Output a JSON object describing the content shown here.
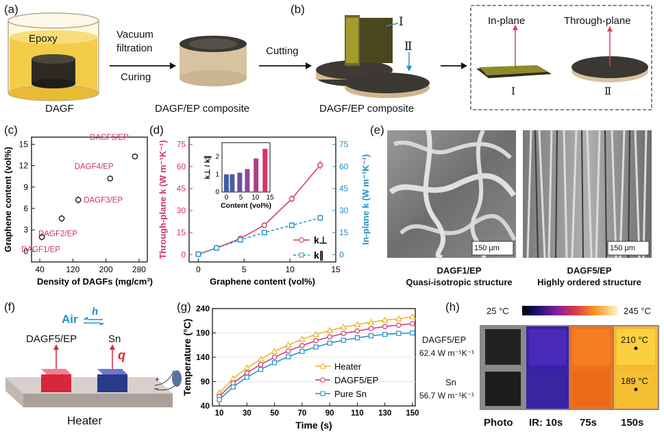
{
  "panel_labels": {
    "a": "(a)",
    "b": "(b)",
    "c": "(c)",
    "d": "(d)",
    "e": "(e)",
    "f": "(f)",
    "g": "(g)",
    "h": "(h)"
  },
  "panel_a": {
    "epoxy_label": "Epoxy",
    "dagf_label": "DAGF",
    "step1_top": "Vacuum",
    "step1_mid": "filtration",
    "step1_bottom": "Curing",
    "composite_label": "DAGF/EP composite"
  },
  "panel_b": {
    "step_label": "Cutting",
    "composite_label": "DAGF/EP composite",
    "marker_I": "Ⅰ",
    "marker_II": "Ⅱ",
    "inplane_label": "In-plane",
    "throughplane_label": "Through-plane",
    "roman_I": "Ⅰ",
    "roman_II": "Ⅱ"
  },
  "panel_c": {
    "colors": {
      "label": "#c8326e",
      "marker": "#222222"
    },
    "chart_data": {
      "type": "scatter",
      "xlabel": "Density of DAGFs (mg/cm³)",
      "ylabel": "Graphene content (vol%)",
      "xlim": [
        20,
        300
      ],
      "ylim": [
        -1.5,
        16
      ],
      "xticks": [
        "40",
        "120",
        "200",
        "280"
      ],
      "yticks": [
        "0",
        "3",
        "6",
        "9",
        "12",
        "15"
      ],
      "points": [
        {
          "label": "DAGF1/EP",
          "x": 45,
          "y": 2.0,
          "err": 0.5
        },
        {
          "label": "DAGF2/EP",
          "x": 93,
          "y": 4.6,
          "err": 0.5
        },
        {
          "label": "DAGF3/EP",
          "x": 133,
          "y": 7.2,
          "err": 0.5
        },
        {
          "label": "DAGF4/EP",
          "x": 210,
          "y": 10.2,
          "err": 0.4
        },
        {
          "label": "DAGF5/EP",
          "x": 270,
          "y": 13.3,
          "err": 0.4
        }
      ]
    }
  },
  "panel_d": {
    "colors": {
      "perp": "#d6336c",
      "par": "#1e90c8"
    },
    "chart_data": {
      "type": "line",
      "xlabel": "Graphene content (vol%)",
      "ylabel_left": "Through-plane k (W m⁻¹K⁻¹)",
      "ylabel_right": "In-plane k (W m⁻¹K⁻¹)",
      "xlim": [
        -1,
        15
      ],
      "ylim": [
        -5,
        80
      ],
      "xticks": [
        "0",
        "5",
        "10",
        "15"
      ],
      "yticks": [
        "0",
        "15",
        "30",
        "45",
        "60",
        "75"
      ],
      "series": [
        {
          "name": "k⊥",
          "x": [
            0,
            2,
            4.6,
            7.2,
            10.2,
            13.3
          ],
          "y": [
            0.3,
            4.5,
            11,
            20,
            38,
            61
          ],
          "err": [
            0,
            0,
            1,
            1.5,
            2.5,
            3
          ]
        },
        {
          "name": "k∥",
          "x": [
            0,
            2,
            4.6,
            7.2,
            10.2,
            13.3
          ],
          "y": [
            0.3,
            4.5,
            10,
            15,
            20,
            25
          ],
          "err": [
            0,
            0,
            1,
            1.5,
            2,
            2
          ]
        }
      ],
      "inset": {
        "type": "bar",
        "xlabel": "Content (vol%)",
        "ylabel": "k⊥ / k∥",
        "xticks": [
          "0",
          "5",
          "10",
          "15"
        ],
        "yticks": [
          "0",
          "1",
          "2"
        ],
        "x": [
          0,
          2,
          4.6,
          7.2,
          10.2,
          13.3
        ],
        "values": [
          1.0,
          1.0,
          1.1,
          1.3,
          1.9,
          2.45
        ]
      }
    }
  },
  "panel_e": {
    "left_scale": "150 μm",
    "right_scale": "150 μm",
    "left_title": "DAGF1/EP",
    "left_subtitle": "Quasi-isotropic structure",
    "right_title": "DAGF5/EP",
    "right_subtitle": "Highly ordered structure"
  },
  "panel_f": {
    "air_label": "Air",
    "h_label": "h",
    "left_block": "DAGF5/EP",
    "right_block": "Sn",
    "q_label": "q",
    "heater_label": "Heater",
    "plus": "+",
    "minus": "−",
    "colors": {
      "red": "#d8263a",
      "blue": "#2a3a8a"
    }
  },
  "panel_g": {
    "colors": {
      "heater": "#e6b422",
      "dagf": "#d6336c",
      "sn": "#1e90c8"
    },
    "chart_data": {
      "type": "line",
      "xlabel": "Time (s)",
      "ylabel": "Temperature (°C)",
      "xlim": [
        5,
        152
      ],
      "ylim": [
        40,
        240
      ],
      "xticks": [
        "10",
        "30",
        "50",
        "70",
        "90",
        "110",
        "130",
        "150"
      ],
      "yticks": [
        "40",
        "90",
        "140",
        "190",
        "240"
      ],
      "series": [
        {
          "name": "Heater",
          "x": [
            10,
            20,
            30,
            40,
            50,
            60,
            70,
            80,
            90,
            100,
            110,
            120,
            130,
            140,
            150
          ],
          "y": [
            67,
            96,
            118,
            136,
            152,
            165,
            177,
            187,
            195,
            202,
            207,
            212,
            216,
            219,
            223
          ]
        },
        {
          "name": "DAGF5/EP",
          "x": [
            10,
            20,
            30,
            40,
            50,
            60,
            70,
            80,
            90,
            100,
            110,
            120,
            130,
            140,
            150
          ],
          "y": [
            60,
            87,
            108,
            125,
            140,
            153,
            164,
            174,
            182,
            189,
            194,
            199,
            203,
            206,
            209
          ]
        },
        {
          "name": "Pure Sn",
          "x": [
            10,
            20,
            30,
            40,
            50,
            60,
            70,
            80,
            90,
            100,
            110,
            120,
            130,
            140,
            150
          ],
          "y": [
            53,
            79,
            99,
            115,
            129,
            141,
            152,
            161,
            169,
            175,
            180,
            184,
            187,
            189,
            190
          ]
        }
      ]
    }
  },
  "panel_h": {
    "scale_min": "25 °C",
    "scale_max": "245 °C",
    "row1_name": "DAGF5/EP",
    "row1_value": "62.4 W m⁻¹K⁻¹",
    "row2_name": "Sn",
    "row2_value": "56.7 W m⁻¹K⁻¹",
    "temp1": "210 °C",
    "temp2": "189 °C",
    "col_labels": [
      "Photo",
      "IR: 10s",
      "75s",
      "150s"
    ]
  }
}
